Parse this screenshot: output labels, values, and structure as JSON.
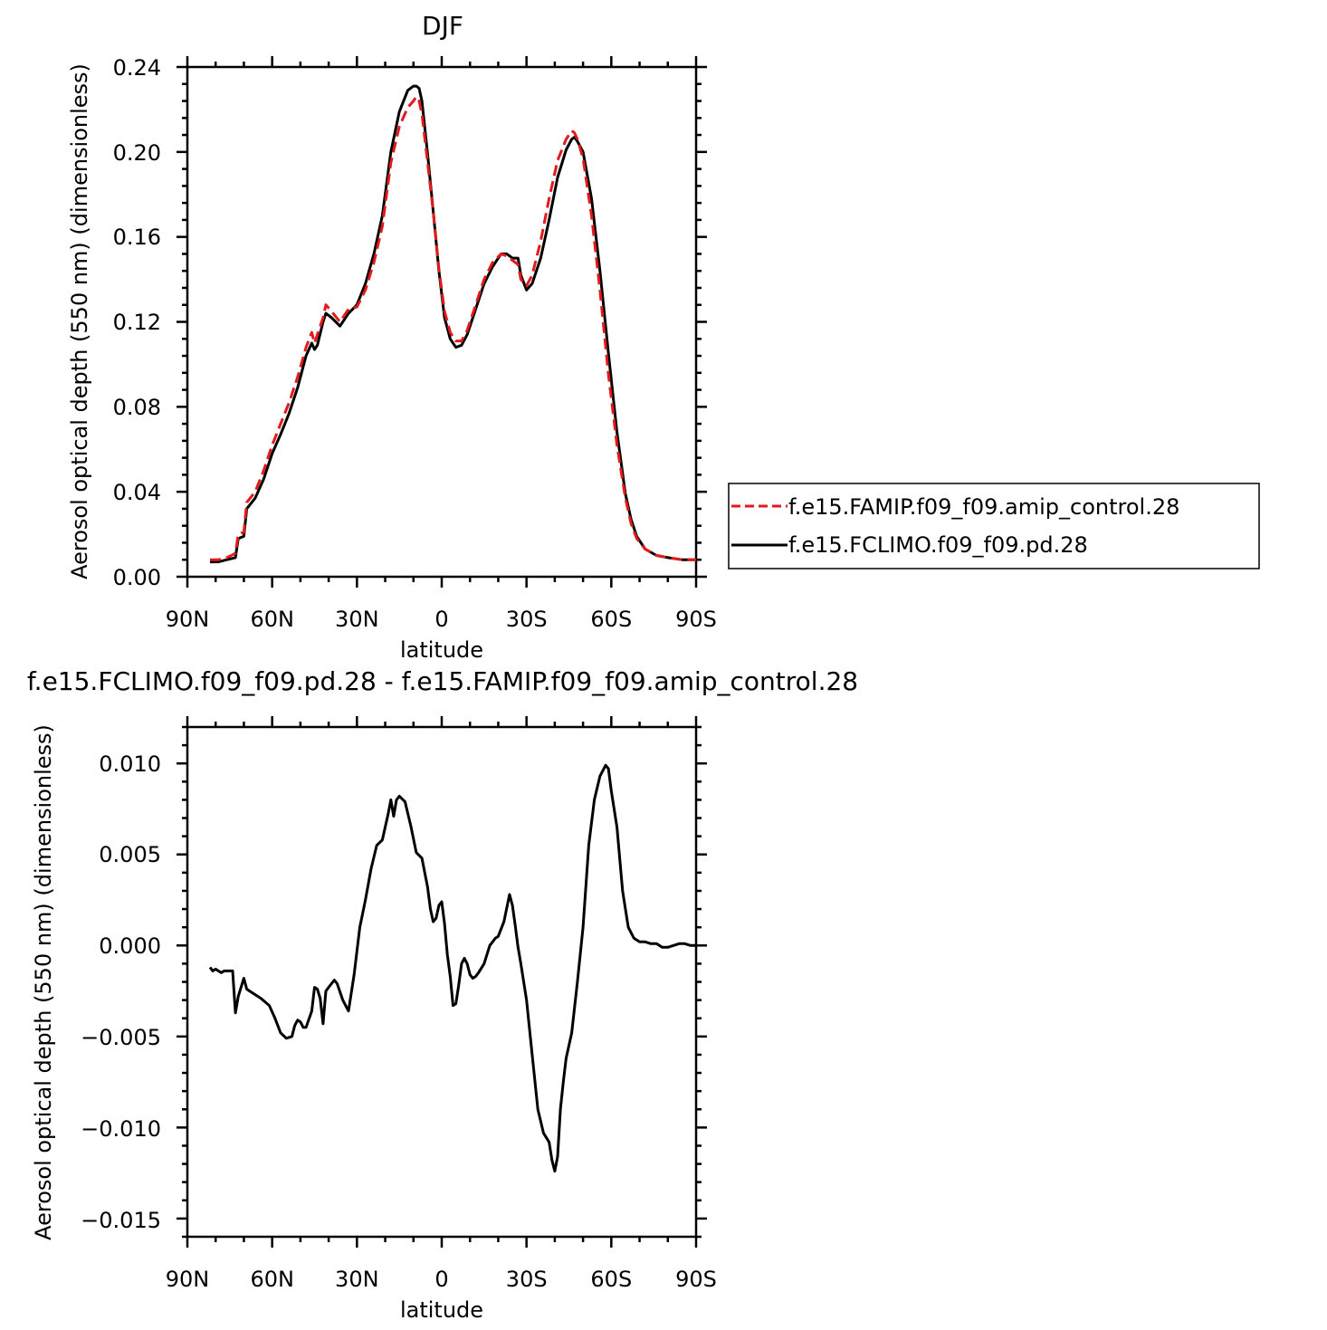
{
  "chart_data": [
    {
      "type": "line",
      "title": "DJF",
      "xlabel": "latitude",
      "ylabel": "Aerosol optical depth (550 nm) (dimensionless)",
      "xlim": [
        -90,
        90
      ],
      "ylim": [
        0,
        0.24
      ],
      "xticks": [
        -90,
        -60,
        -30,
        0,
        30,
        60,
        90
      ],
      "xtick_labels": [
        "90N",
        "60N",
        "30N",
        "0",
        "30S",
        "60S",
        "90S"
      ],
      "yticks": [
        0,
        0.04,
        0.08,
        0.12,
        0.16,
        0.2,
        0.24
      ],
      "ytick_labels": [
        "0.00",
        "0.04",
        "0.08",
        "0.12",
        "0.16",
        "0.20",
        "0.24"
      ],
      "legend_position": "right",
      "series": [
        {
          "name": "f.e15.FAMIP.f09_f09.amip_control.28",
          "color": "#e31a1c",
          "dash": "dashed",
          "x": [
            -82,
            -79,
            -76,
            -73,
            -72,
            -70,
            -69,
            -66,
            -63,
            -60,
            -57,
            -54,
            -51,
            -48,
            -46,
            -45,
            -44,
            -42,
            -41,
            -39,
            -36,
            -33,
            -30,
            -27,
            -24,
            -21,
            -18,
            -15,
            -12,
            -10,
            -9,
            -8,
            -7,
            -5,
            -3,
            -1,
            1,
            3,
            5,
            7,
            9,
            12,
            15,
            18,
            21,
            23,
            25,
            27,
            28,
            30,
            32,
            35,
            38,
            41,
            44,
            46,
            47,
            48,
            50,
            53,
            56,
            59,
            62,
            65,
            67,
            69,
            72,
            76,
            80,
            85,
            90
          ],
          "y": [
            0.008,
            0.008,
            0.009,
            0.011,
            0.02,
            0.021,
            0.035,
            0.04,
            0.05,
            0.062,
            0.072,
            0.082,
            0.094,
            0.108,
            0.115,
            0.11,
            0.114,
            0.122,
            0.128,
            0.125,
            0.12,
            0.126,
            0.127,
            0.135,
            0.148,
            0.165,
            0.195,
            0.212,
            0.221,
            0.224,
            0.226,
            0.224,
            0.218,
            0.195,
            0.172,
            0.145,
            0.125,
            0.115,
            0.111,
            0.111,
            0.116,
            0.128,
            0.14,
            0.148,
            0.152,
            0.151,
            0.149,
            0.147,
            0.14,
            0.137,
            0.142,
            0.158,
            0.178,
            0.196,
            0.206,
            0.21,
            0.209,
            0.206,
            0.197,
            0.17,
            0.135,
            0.095,
            0.062,
            0.037,
            0.025,
            0.018,
            0.013,
            0.01,
            0.009,
            0.008,
            0.008
          ]
        },
        {
          "name": "f.e15.FCLIMO.f09_f09.pd.28",
          "color": "#000000",
          "dash": "solid",
          "x": [
            -82,
            -79,
            -76,
            -73,
            -72,
            -70,
            -69,
            -66,
            -63,
            -60,
            -57,
            -54,
            -51,
            -48,
            -46,
            -45,
            -44,
            -42,
            -41,
            -39,
            -36,
            -33,
            -30,
            -27,
            -24,
            -21,
            -18,
            -15,
            -12,
            -10,
            -9,
            -8,
            -7,
            -5,
            -3,
            -1,
            1,
            3,
            5,
            7,
            9,
            12,
            15,
            18,
            21,
            23,
            25,
            27,
            28,
            30,
            32,
            35,
            38,
            41,
            44,
            46,
            47,
            48,
            50,
            53,
            56,
            59,
            62,
            65,
            67,
            69,
            72,
            76,
            80,
            85,
            90
          ],
          "y": [
            0.007,
            0.007,
            0.008,
            0.009,
            0.018,
            0.019,
            0.032,
            0.037,
            0.046,
            0.058,
            0.067,
            0.077,
            0.089,
            0.104,
            0.11,
            0.107,
            0.109,
            0.12,
            0.124,
            0.122,
            0.118,
            0.124,
            0.128,
            0.138,
            0.152,
            0.17,
            0.2,
            0.219,
            0.229,
            0.231,
            0.231,
            0.23,
            0.224,
            0.199,
            0.172,
            0.144,
            0.122,
            0.112,
            0.108,
            0.109,
            0.114,
            0.126,
            0.138,
            0.146,
            0.152,
            0.152,
            0.15,
            0.15,
            0.142,
            0.135,
            0.138,
            0.15,
            0.168,
            0.188,
            0.201,
            0.206,
            0.207,
            0.205,
            0.2,
            0.178,
            0.144,
            0.105,
            0.068,
            0.039,
            0.027,
            0.019,
            0.013,
            0.01,
            0.009,
            0.008,
            0.008
          ]
        }
      ]
    },
    {
      "type": "line",
      "title": "f.e15.FCLIMO.f09_f09.pd.28 - f.e15.FAMIP.f09_f09.amip_control.28",
      "xlabel": "latitude",
      "ylabel": "Aerosol optical depth (550 nm) (dimensionless)",
      "xlim": [
        -90,
        90
      ],
      "ylim": [
        -0.016,
        0.012
      ],
      "xticks": [
        -90,
        -60,
        -30,
        0,
        30,
        60,
        90
      ],
      "xtick_labels": [
        "90N",
        "60N",
        "30N",
        "0",
        "30S",
        "60S",
        "90S"
      ],
      "yticks": [
        -0.015,
        -0.01,
        -0.005,
        0.0,
        0.005,
        0.01
      ],
      "ytick_labels": [
        "−0.015",
        "−0.010",
        "−0.005",
        "0.000",
        "0.005",
        "0.010"
      ],
      "series": [
        {
          "name": "",
          "color": "#000000",
          "dash": "solid",
          "x": [
            -82,
            -81,
            -80,
            -79,
            -78,
            -77,
            -76,
            -74,
            -73,
            -72,
            -70,
            -69,
            -67,
            -64,
            -61,
            -59,
            -57,
            -55,
            -53,
            -52,
            -51,
            -50,
            -49,
            -48,
            -46,
            -45,
            -44,
            -43,
            -42,
            -41,
            -40,
            -39,
            -38,
            -37,
            -35,
            -33,
            -31,
            -29,
            -27,
            -25,
            -23,
            -21,
            -19,
            -18,
            -17,
            -16,
            -15,
            -13,
            -11,
            -9,
            -7,
            -5,
            -4,
            -3,
            -2,
            -1,
            0,
            1,
            2,
            3,
            4,
            5,
            6,
            7,
            8,
            9,
            10,
            11,
            12,
            13,
            15,
            17,
            18,
            19,
            20,
            22,
            24,
            25,
            26,
            27,
            28,
            30,
            32,
            34,
            36,
            38,
            39,
            40,
            41,
            42,
            43,
            44,
            46,
            48,
            50,
            52,
            54,
            56,
            58,
            59,
            60,
            62,
            64,
            66,
            68,
            70,
            72,
            74,
            76,
            78,
            80,
            82,
            84,
            86,
            88,
            90
          ],
          "y": [
            -0.0012,
            -0.0014,
            -0.0013,
            -0.0014,
            -0.0015,
            -0.0014,
            -0.0014,
            -0.0014,
            -0.0037,
            -0.0028,
            -0.0018,
            -0.0024,
            -0.0026,
            -0.0029,
            -0.0033,
            -0.004,
            -0.0048,
            -0.0051,
            -0.005,
            -0.0044,
            -0.0041,
            -0.0042,
            -0.0045,
            -0.0045,
            -0.0036,
            -0.0023,
            -0.0024,
            -0.0029,
            -0.0043,
            -0.0025,
            -0.0023,
            -0.0021,
            -0.0019,
            -0.0021,
            -0.003,
            -0.0036,
            -0.0016,
            0.001,
            0.0025,
            0.0042,
            0.0055,
            0.0058,
            0.0072,
            0.008,
            0.0071,
            0.008,
            0.0082,
            0.0079,
            0.0066,
            0.0051,
            0.0048,
            0.0032,
            0.002,
            0.0013,
            0.0015,
            0.0022,
            0.0024,
            0.0012,
            -0.0005,
            -0.0017,
            -0.0033,
            -0.0032,
            -0.0022,
            -0.001,
            -0.0007,
            -0.001,
            -0.0016,
            -0.0018,
            -0.0017,
            -0.0015,
            -0.001,
            0.0,
            0.0002,
            0.0004,
            0.0005,
            0.0013,
            0.0028,
            0.0022,
            0.0011,
            -0.0001,
            -0.001,
            -0.003,
            -0.006,
            -0.009,
            -0.0103,
            -0.0108,
            -0.0118,
            -0.0124,
            -0.0116,
            -0.009,
            -0.0075,
            -0.0062,
            -0.0048,
            -0.002,
            0.001,
            0.0055,
            0.008,
            0.0093,
            0.0099,
            0.0097,
            0.0085,
            0.0065,
            0.003,
            0.001,
            0.0004,
            0.0002,
            0.0002,
            0.0001,
            0.0001,
            -0.0001,
            -0.0001,
            0.0,
            0.0001,
            0.0001,
            0.0,
            0.0
          ]
        }
      ]
    }
  ]
}
